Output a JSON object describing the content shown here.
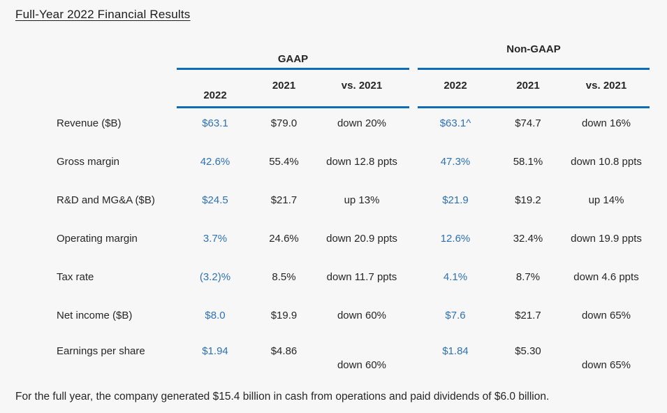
{
  "page": {
    "title": "Full-Year 2022 Financial Results",
    "footer": "For the full year, the company generated $15.4 billion in cash from operations and paid dividends of $6.0 billion."
  },
  "table": {
    "groups": {
      "gaap": "GAAP",
      "nongaap": "Non-GAAP"
    },
    "columns": [
      "2022",
      "2021",
      "vs. 2021"
    ],
    "rows": [
      {
        "label": "Revenue ($B)",
        "gaap": {
          "y2022": "$63.1",
          "y2021": "$79.0",
          "vs": "down 20%"
        },
        "nongaap": {
          "y2022": "$63.1^",
          "y2021": "$74.7",
          "vs": "down 16%"
        }
      },
      {
        "label": "Gross margin",
        "gaap": {
          "y2022": "42.6%",
          "y2021": "55.4%",
          "vs": "down 12.8 ppts"
        },
        "nongaap": {
          "y2022": "47.3%",
          "y2021": "58.1%",
          "vs": "down 10.8 ppts"
        }
      },
      {
        "label": "R&D and MG&A ($B)",
        "gaap": {
          "y2022": "$24.5",
          "y2021": "$21.7",
          "vs": "up 13%"
        },
        "nongaap": {
          "y2022": "$21.9",
          "y2021": "$19.2",
          "vs": "up 14%"
        }
      },
      {
        "label": "Operating margin",
        "gaap": {
          "y2022": "3.7%",
          "y2021": "24.6%",
          "vs": "down 20.9 ppts"
        },
        "nongaap": {
          "y2022": "12.6%",
          "y2021": "32.4%",
          "vs": "down 19.9 ppts"
        }
      },
      {
        "label": "Tax rate",
        "gaap": {
          "y2022": "(3.2)%",
          "y2021": "8.5%",
          "vs": "down 11.7 ppts"
        },
        "nongaap": {
          "y2022": "4.1%",
          "y2021": "8.7%",
          "vs": "down 4.6 ppts"
        }
      },
      {
        "label": "Net income ($B)",
        "gaap": {
          "y2022": "$8.0",
          "y2021": "$19.9",
          "vs": "down 60%"
        },
        "nongaap": {
          "y2022": "$7.6",
          "y2021": "$21.7",
          "vs": "down 65%"
        }
      },
      {
        "label": "Earnings per share",
        "gaap": {
          "y2022": "$1.94",
          "y2021": "$4.86",
          "vs": "down 60%"
        },
        "nongaap": {
          "y2022": "$1.84",
          "y2021": "$5.30",
          "vs": "down 65%"
        }
      }
    ]
  },
  "colors": {
    "background": "#f7f7f7",
    "text": "#262626",
    "value_blue": "#2e71b5",
    "accent_line": "#0d6db6"
  }
}
